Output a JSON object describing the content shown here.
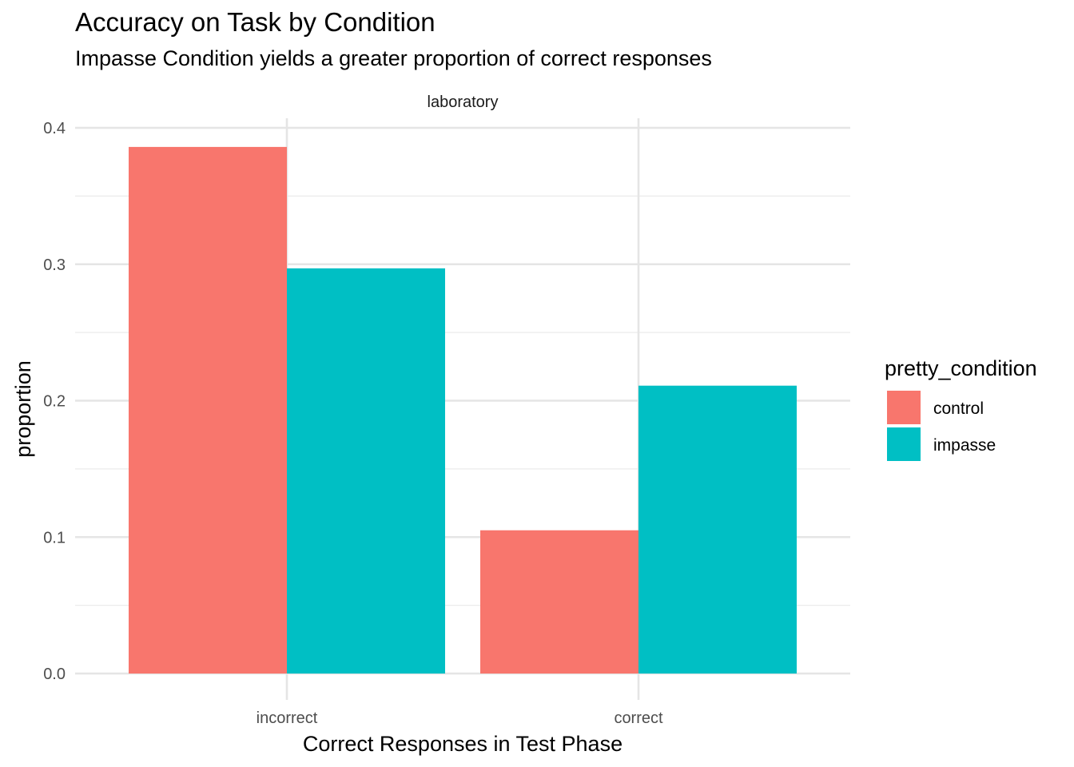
{
  "chart_data": {
    "type": "bar",
    "title": "Accuracy on Task by Condition",
    "subtitle": "Impasse Condition yields a greater proportion of correct responses",
    "facet_label": "laboratory",
    "xlabel": "Correct Responses in Test Phase",
    "ylabel": "proportion",
    "categories": [
      "incorrect",
      "correct"
    ],
    "series": [
      {
        "name": "control",
        "color": "#F8766D",
        "values": [
          0.386,
          0.105
        ]
      },
      {
        "name": "impasse",
        "color": "#00BFC4",
        "values": [
          0.297,
          0.211
        ]
      }
    ],
    "ylim": [
      0,
      0.4
    ],
    "yticks": [
      "0.0",
      "0.1",
      "0.2",
      "0.3",
      "0.4"
    ],
    "ytick_values": [
      0,
      0.1,
      0.2,
      0.3,
      0.4
    ],
    "grid": true,
    "legend": {
      "title": "pretty_condition",
      "position": "right",
      "items": [
        "control",
        "impasse"
      ]
    }
  }
}
